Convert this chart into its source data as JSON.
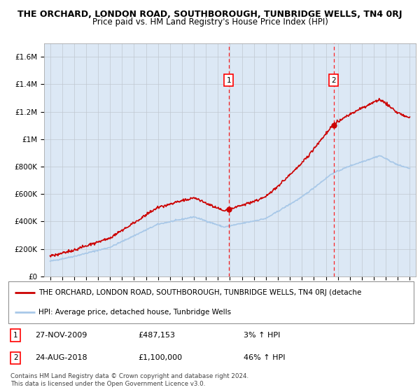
{
  "title": "THE ORCHARD, LONDON ROAD, SOUTHBOROUGH, TUNBRIDGE WELLS, TN4 0RJ",
  "subtitle": "Price paid vs. HM Land Registry's House Price Index (HPI)",
  "ylim": [
    0,
    1700000
  ],
  "yticks": [
    0,
    200000,
    400000,
    600000,
    800000,
    1000000,
    1200000,
    1400000,
    1600000
  ],
  "ytick_labels": [
    "£0",
    "£200K",
    "£400K",
    "£600K",
    "£800K",
    "£1M",
    "£1.2M",
    "£1.4M",
    "£1.6M"
  ],
  "hpi_color": "#a8c8e8",
  "property_color": "#CC0000",
  "sale1_date": 2009.9,
  "sale1_price": 487153,
  "sale1_label": "1",
  "sale2_date": 2018.65,
  "sale2_price": 1100000,
  "sale2_label": "2",
  "legend_property": "THE ORCHARD, LONDON ROAD, SOUTHBOROUGH, TUNBRIDGE WELLS, TN4 0RJ (detache",
  "legend_hpi": "HPI: Average price, detached house, Tunbridge Wells",
  "footer": "Contains HM Land Registry data © Crown copyright and database right 2024.\nThis data is licensed under the Open Government Licence v3.0.",
  "background_color": "#dce8f5",
  "grid_color": "#c0c8d0",
  "title_fontsize": 9,
  "subtitle_fontsize": 8.5,
  "xtick_years": [
    1995,
    1996,
    1997,
    1998,
    1999,
    2000,
    2001,
    2002,
    2003,
    2004,
    2005,
    2006,
    2007,
    2008,
    2009,
    2010,
    2011,
    2012,
    2013,
    2014,
    2015,
    2016,
    2017,
    2018,
    2019,
    2020,
    2021,
    2022,
    2023,
    2024,
    2025
  ]
}
